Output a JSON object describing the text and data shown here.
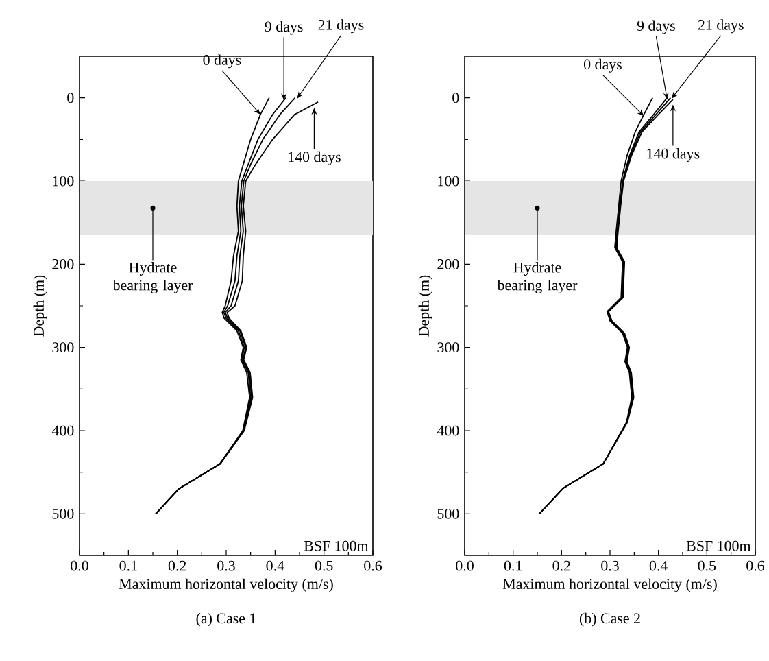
{
  "chart_data": [
    {
      "type": "line",
      "title": "(a) Case 1",
      "xlabel": "Maximum horizontal velocity (m/s)",
      "ylabel": "Depth (m)",
      "xlim": [
        0,
        0.6
      ],
      "ylim": [
        550,
        -50
      ],
      "xticks": [
        {
          "value": 0,
          "label": "0.0"
        },
        0.1,
        0.2,
        0.3,
        0.4,
        0.5,
        0.6
      ],
      "yticks": [
        0,
        100,
        200,
        300,
        400,
        500
      ],
      "series": [
        {
          "color": "#000000",
          "x": [
            0.388,
            0.37,
            0.35,
            0.335,
            0.325,
            0.322,
            0.325,
            0.315,
            0.31,
            0.298,
            0.292,
            0.296,
            0.322,
            0.335,
            0.33,
            0.342,
            0.348,
            0.334,
            0.287,
            0.203,
            0.156
          ],
          "values": [
            0,
            20,
            50,
            80,
            100,
            130,
            160,
            190,
            220,
            250,
            258,
            265,
            280,
            300,
            315,
            330,
            360,
            400,
            440,
            470,
            500
          ]
        },
        {
          "color": "#000000",
          "x": [
            0.422,
            0.395,
            0.365,
            0.345,
            0.332,
            0.327,
            0.33,
            0.322,
            0.318,
            0.303,
            0.295,
            0.3,
            0.325,
            0.337,
            0.332,
            0.345,
            0.35,
            0.335,
            0.287,
            0.203,
            0.156
          ],
          "values": [
            0,
            20,
            50,
            80,
            100,
            130,
            160,
            190,
            220,
            250,
            258,
            265,
            280,
            300,
            315,
            330,
            360,
            400,
            440,
            470,
            500
          ]
        },
        {
          "color": "#000000",
          "x": [
            0.441,
            0.41,
            0.375,
            0.35,
            0.336,
            0.331,
            0.335,
            0.328,
            0.325,
            0.31,
            0.298,
            0.303,
            0.328,
            0.34,
            0.334,
            0.347,
            0.352,
            0.336,
            0.288,
            0.203,
            0.156
          ],
          "values": [
            0,
            20,
            50,
            80,
            100,
            130,
            160,
            190,
            220,
            250,
            258,
            265,
            280,
            300,
            315,
            330,
            360,
            400,
            440,
            470,
            500
          ]
        },
        {
          "color": "#000000",
          "x": [
            0.488,
            0.44,
            0.395,
            0.36,
            0.34,
            0.335,
            0.34,
            0.335,
            0.333,
            0.318,
            0.302,
            0.306,
            0.33,
            0.342,
            0.336,
            0.349,
            0.354,
            0.337,
            0.288,
            0.203,
            0.156
          ],
          "values": [
            5,
            20,
            50,
            80,
            100,
            130,
            160,
            190,
            220,
            250,
            258,
            265,
            280,
            300,
            315,
            330,
            360,
            400,
            440,
            470,
            500
          ]
        }
      ],
      "bands": [
        {
          "axis": "y",
          "from": 100,
          "to": 165,
          "label": "Hydrate bearing layer",
          "color": "#e5e5e5"
        }
      ],
      "annotations": [
        {
          "text": "0 days",
          "x": 0.37,
          "y": 20
        },
        {
          "text": "9 days",
          "x": 0.418,
          "y": 3
        },
        {
          "text": "21 days",
          "x": 0.445,
          "y": 1
        },
        {
          "text": "140 days",
          "x": 0.48,
          "y": 12
        },
        "BSF 100m"
      ]
    },
    {
      "type": "line",
      "title": "(b) Case 2",
      "xlabel": "Maximum horizontal velocity (m/s)",
      "ylabel": "Depth (m)",
      "xlim": [
        0,
        0.6
      ],
      "ylim": [
        550,
        -50
      ],
      "xticks": [
        {
          "value": 0,
          "label": "0.0"
        },
        0.1,
        0.2,
        0.3,
        0.4,
        0.5,
        0.6
      ],
      "yticks": [
        0,
        100,
        200,
        300,
        400,
        500
      ],
      "series": [
        {
          "color": "#000000",
          "x": [
            0.388,
            0.37,
            0.352,
            0.335,
            0.323,
            0.318,
            0.312,
            0.31,
            0.326,
            0.323,
            0.294,
            0.3,
            0.326,
            0.336,
            0.331,
            0.34,
            0.345,
            0.334,
            0.286,
            0.204,
            0.154
          ],
          "values": [
            0,
            20,
            41,
            70,
            100,
            130,
            165,
            180,
            197,
            240,
            257,
            268,
            283,
            300,
            317,
            330,
            360,
            390,
            440,
            469,
            500
          ]
        },
        {
          "color": "#000000",
          "x": [
            0.418,
            0.39,
            0.36,
            0.34,
            0.326,
            0.32,
            0.314,
            0.312,
            0.328,
            0.325,
            0.295,
            0.302,
            0.328,
            0.338,
            0.333,
            0.342,
            0.347,
            0.335,
            0.286,
            0.204,
            0.154
          ],
          "values": [
            0,
            20,
            41,
            70,
            100,
            130,
            165,
            180,
            197,
            240,
            257,
            268,
            283,
            300,
            317,
            330,
            360,
            390,
            440,
            469,
            500
          ]
        },
        {
          "color": "#000000",
          "x": [
            0.425,
            0.395,
            0.363,
            0.342,
            0.327,
            0.321,
            0.315,
            0.313,
            0.329,
            0.326,
            0.296,
            0.303,
            0.329,
            0.339,
            0.334,
            0.343,
            0.348,
            0.335,
            0.286,
            0.204,
            0.154
          ],
          "values": [
            0,
            20,
            41,
            70,
            100,
            130,
            165,
            180,
            197,
            240,
            257,
            268,
            283,
            300,
            317,
            330,
            360,
            390,
            440,
            469,
            500
          ]
        },
        {
          "color": "#000000",
          "x": [
            0.43,
            0.4,
            0.366,
            0.344,
            0.328,
            0.322,
            0.316,
            0.314,
            0.33,
            0.327,
            0.297,
            0.304,
            0.33,
            0.34,
            0.335,
            0.344,
            0.349,
            0.336,
            0.286,
            0.204,
            0.154
          ],
          "values": [
            2,
            20,
            41,
            70,
            100,
            130,
            165,
            180,
            197,
            240,
            257,
            268,
            283,
            300,
            317,
            330,
            360,
            390,
            440,
            469,
            500
          ]
        }
      ],
      "bands": [
        {
          "axis": "y",
          "from": 100,
          "to": 165,
          "label": "Hydrate bearing layer",
          "color": "#e5e5e5"
        }
      ],
      "annotations": [
        {
          "text": "0 days",
          "x": 0.37,
          "y": 22
        },
        {
          "text": "9 days",
          "x": 0.418,
          "y": 2
        },
        {
          "text": "21 days",
          "x": 0.427,
          "y": 1
        },
        {
          "text": "140 days",
          "x": 0.43,
          "y": 8
        },
        "BSF 100m"
      ]
    }
  ]
}
